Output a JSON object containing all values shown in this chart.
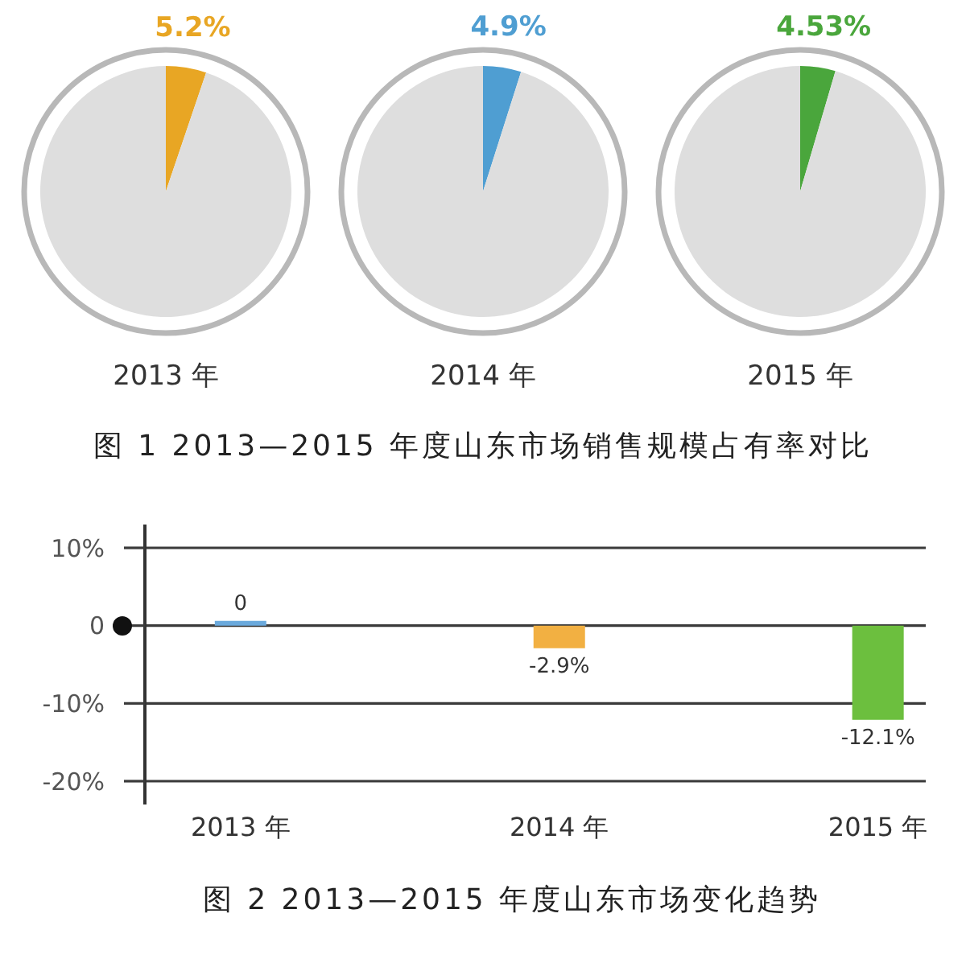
{
  "chart_data": [
    {
      "type": "pie",
      "title": "2013 年",
      "categories": [
        null,
        null
      ],
      "values": [
        5.2,
        94.8
      ],
      "colors": [
        "#e8a624",
        "#dedede"
      ],
      "value_labels": [
        "5.2%",
        null
      ]
    },
    {
      "type": "pie",
      "title": "2014 年",
      "categories": [
        null,
        null
      ],
      "values": [
        4.9,
        95.1
      ],
      "colors": [
        "#4f9ed2",
        "#dedede"
      ],
      "value_labels": [
        "4.9%",
        null
      ],
      "annotations": [
        "图 1 2013—2015 年度山东市场销售规模占有率对比"
      ]
    },
    {
      "type": "pie",
      "title": "2015 年",
      "categories": [
        null,
        null
      ],
      "values": [
        4.53,
        95.47
      ],
      "colors": [
        "#4aa63c",
        "#dedede"
      ],
      "value_labels": [
        "4.53%",
        null
      ]
    },
    {
      "type": "bar",
      "categories": [
        "2013 年",
        "2014 年",
        "2015 年"
      ],
      "values": [
        0,
        -2.9,
        -12.1
      ],
      "colors": [
        "#6aa9dc",
        "#f2b042",
        "#6cbf3e"
      ],
      "ylim": [
        -23,
        13
      ],
      "yticks": [
        {
          "value": 10,
          "label": "10%"
        },
        {
          "value": 0,
          "label": "0"
        },
        {
          "value": -10,
          "label": "-10%"
        },
        {
          "value": -20,
          "label": "-20%"
        }
      ],
      "grid": "y",
      "value_labels": [
        "0",
        "-2.9%",
        "-12.1%"
      ],
      "annotations": [
        "图 2 2013—2015 年度山东市场变化趋势"
      ]
    }
  ]
}
